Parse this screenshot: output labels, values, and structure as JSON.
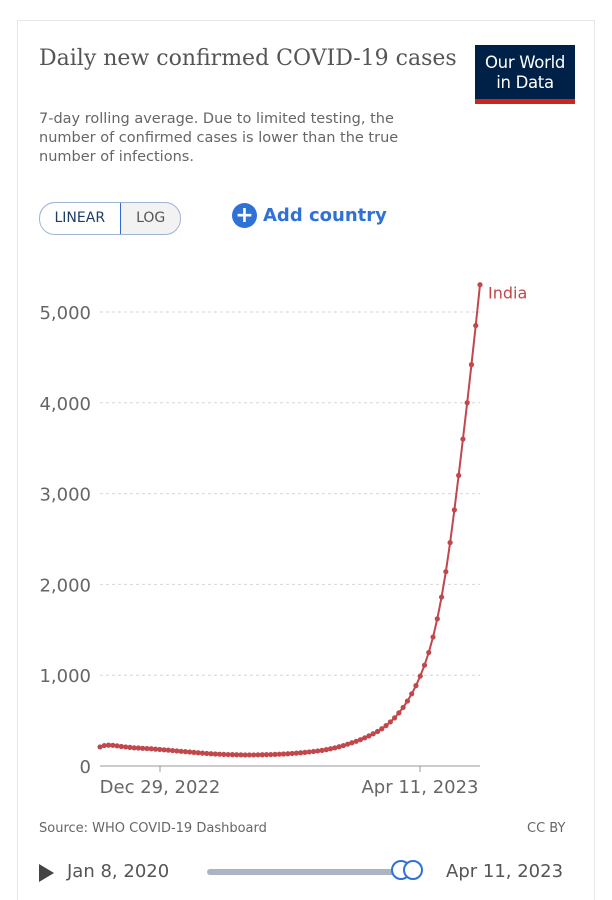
{
  "header": {
    "title": "Daily new confirmed COVID-19 cases",
    "subtitle": "7-day rolling average. Due to limited testing, the number of confirmed cases is lower than the true number of infections.",
    "logo_line1": "Our World",
    "logo_line2": "in Data"
  },
  "controls": {
    "scale_linear": "LINEAR",
    "scale_log": "LOG",
    "active_scale": "LINEAR",
    "add_country_label": "Add country"
  },
  "chart_data": {
    "type": "line",
    "title": "Daily new confirmed COVID-19 cases",
    "y_ticks": [
      "0",
      "1,000",
      "2,000",
      "3,000",
      "4,000",
      "5,000"
    ],
    "x_tick_labels": [
      "Dec 29, 2022",
      "Apr 11, 2023"
    ],
    "ylim": [
      0,
      5500
    ],
    "grid": true,
    "series_color": "#c1474b",
    "series": [
      {
        "name": "India",
        "values": [
          210,
          225,
          230,
          228,
          222,
          215,
          210,
          205,
          200,
          198,
          195,
          192,
          190,
          186,
          182,
          178,
          175,
          170,
          166,
          162,
          158,
          154,
          150,
          146,
          142,
          138,
          135,
          132,
          130,
          128,
          126,
          125,
          124,
          123,
          122,
          122,
          122,
          123,
          124,
          125,
          126,
          128,
          130,
          132,
          135,
          138,
          142,
          146,
          150,
          155,
          160,
          166,
          172,
          180,
          190,
          200,
          212,
          225,
          240,
          256,
          272,
          290,
          310,
          332,
          355,
          380,
          410,
          445,
          485,
          530,
          585,
          645,
          715,
          795,
          885,
          990,
          1110,
          1250,
          1420,
          1620,
          1860,
          2140,
          2460,
          2820,
          3200,
          3600,
          4000,
          4420,
          4850,
          5300
        ]
      }
    ]
  },
  "footer": {
    "source": "Source: WHO COVID-19 Dashboard",
    "license": "CC BY"
  },
  "timeline": {
    "start_date": "Jan 8, 2020",
    "end_date": "Apr 11, 2023",
    "selected_start_fraction": 0.96,
    "selected_end_fraction": 1.0
  }
}
